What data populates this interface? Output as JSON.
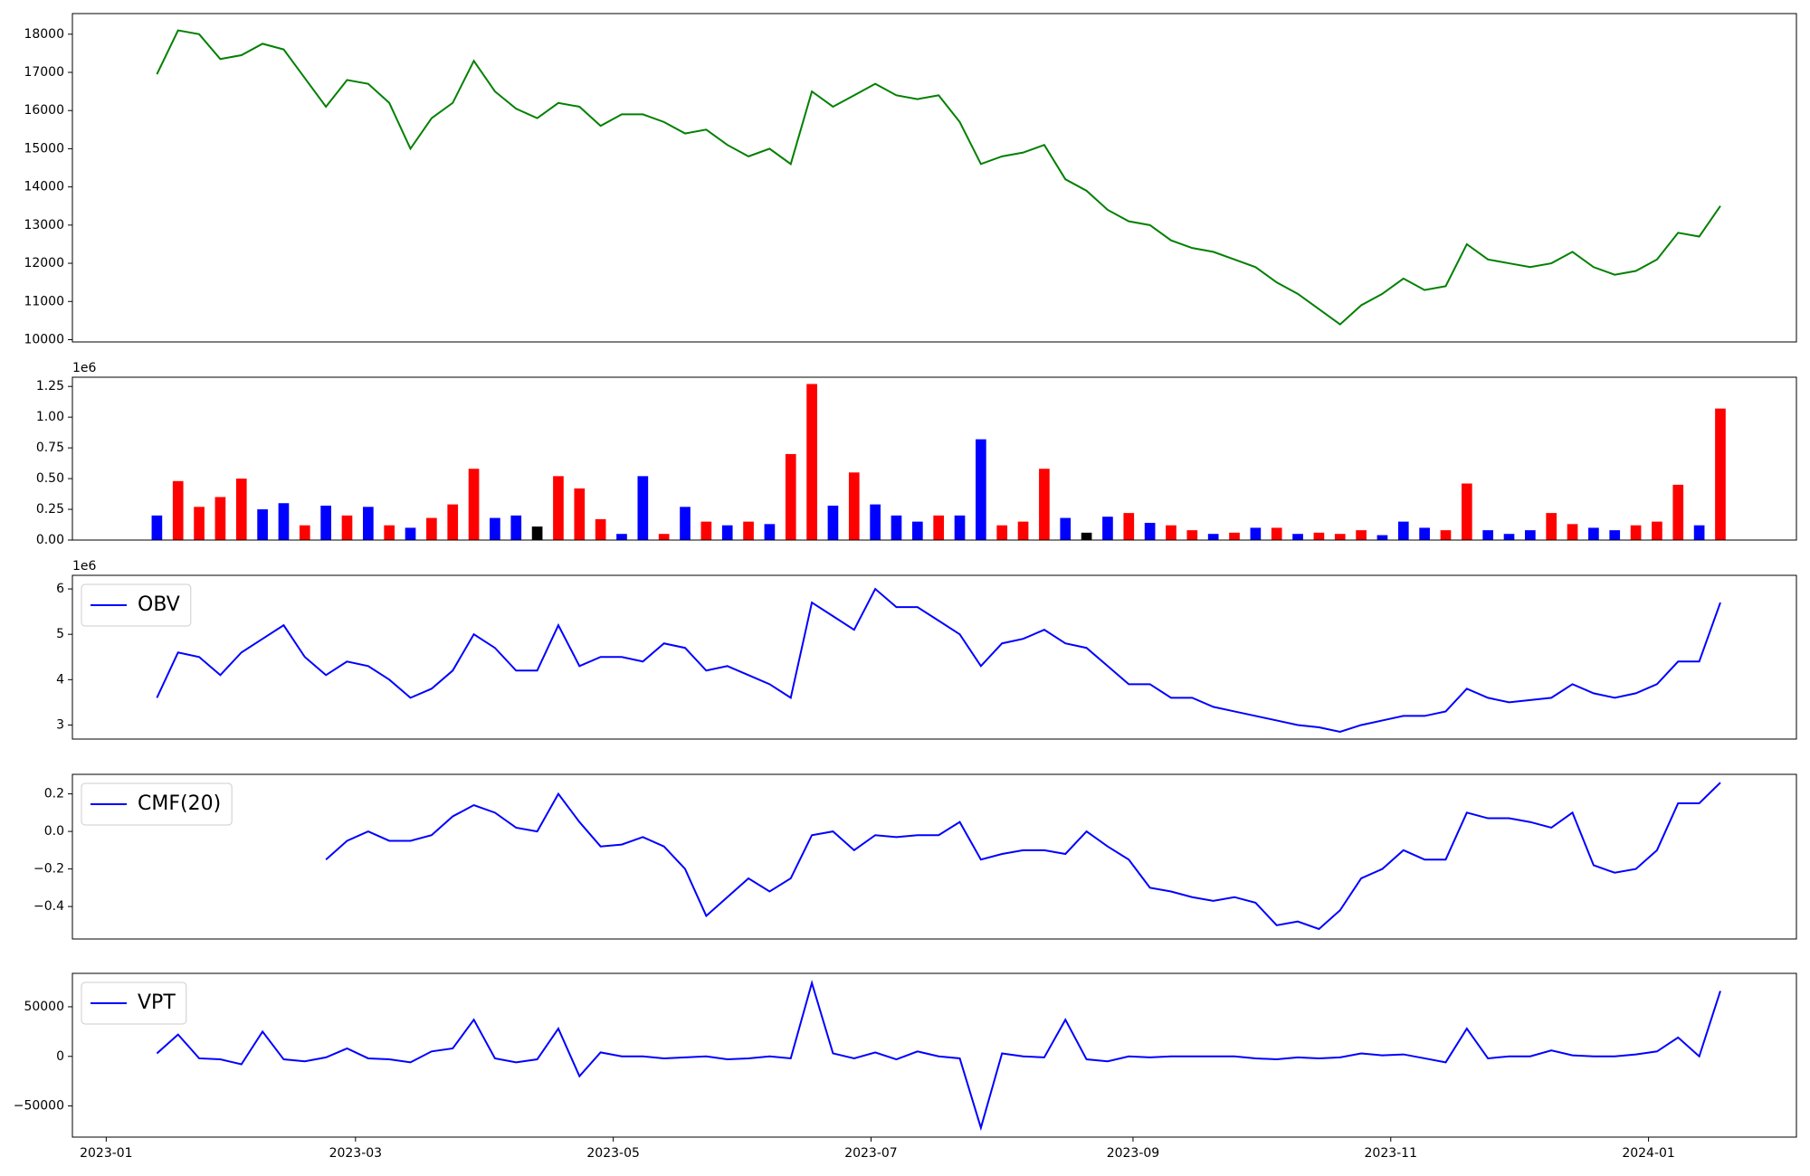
{
  "chart_data": [
    {
      "type": "line",
      "x": [
        "2023-01-13",
        "2023-01-18",
        "2023-01-23",
        "2023-01-28",
        "2023-02-02",
        "2023-02-07",
        "2023-02-12",
        "2023-02-17",
        "2023-02-22",
        "2023-02-27",
        "2023-03-04",
        "2023-03-09",
        "2023-03-14",
        "2023-03-19",
        "2023-03-24",
        "2023-03-29",
        "2023-04-03",
        "2023-04-08",
        "2023-04-13",
        "2023-04-18",
        "2023-04-23",
        "2023-04-28",
        "2023-05-03",
        "2023-05-08",
        "2023-05-13",
        "2023-05-18",
        "2023-05-23",
        "2023-05-28",
        "2023-06-02",
        "2023-06-07",
        "2023-06-12",
        "2023-06-17",
        "2023-06-22",
        "2023-06-27",
        "2023-07-02",
        "2023-07-07",
        "2023-07-12",
        "2023-07-17",
        "2023-07-22",
        "2023-07-27",
        "2023-08-01",
        "2023-08-06",
        "2023-08-11",
        "2023-08-16",
        "2023-08-21",
        "2023-08-26",
        "2023-08-31",
        "2023-09-05",
        "2023-09-10",
        "2023-09-15",
        "2023-09-20",
        "2023-09-25",
        "2023-09-30",
        "2023-10-05",
        "2023-10-10",
        "2023-10-15",
        "2023-10-20",
        "2023-10-25",
        "2023-10-30",
        "2023-11-04",
        "2023-11-09",
        "2023-11-14",
        "2023-11-19",
        "2023-11-24",
        "2023-11-29",
        "2023-12-04",
        "2023-12-09",
        "2023-12-14",
        "2023-12-19",
        "2023-12-24",
        "2023-12-29",
        "2024-01-03",
        "2024-01-08",
        "2024-01-13",
        "2024-01-18"
      ],
      "series": [
        {
          "color": "#008000",
          "values": [
            16950,
            18100,
            18000,
            17350,
            17450,
            17750,
            17600,
            16850,
            16100,
            16800,
            16700,
            16200,
            15000,
            15800,
            16200,
            17300,
            16500,
            16050,
            15800,
            16200,
            16100,
            15600,
            15900,
            15900,
            15700,
            15400,
            15500,
            15100,
            14800,
            15000,
            14600,
            16500,
            16100,
            16400,
            16700,
            16400,
            16300,
            16400,
            15700,
            14600,
            14800,
            14900,
            15100,
            14200,
            13900,
            13400,
            13100,
            13000,
            12600,
            12400,
            12300,
            12100,
            11900,
            11500,
            11200,
            10800,
            10400,
            10900,
            11200,
            11600,
            11300,
            11400,
            12500,
            12100,
            12000,
            11900,
            12000,
            12300,
            11900,
            11700,
            11800,
            12100,
            12800,
            12700,
            13500
          ]
        }
      ],
      "xlim": [
        "2022-12-24",
        "2024-02-05"
      ],
      "ylim": [
        9940,
        18540
      ],
      "yticks": [
        10000,
        11000,
        12000,
        13000,
        14000,
        15000,
        16000,
        17000,
        18000
      ]
    },
    {
      "type": "bar",
      "x": [
        "2023-01-13",
        "2023-01-18",
        "2023-01-23",
        "2023-01-28",
        "2023-02-02",
        "2023-02-07",
        "2023-02-12",
        "2023-02-17",
        "2023-02-22",
        "2023-02-27",
        "2023-03-04",
        "2023-03-09",
        "2023-03-14",
        "2023-03-19",
        "2023-03-24",
        "2023-03-29",
        "2023-04-03",
        "2023-04-08",
        "2023-04-13",
        "2023-04-18",
        "2023-04-23",
        "2023-04-28",
        "2023-05-03",
        "2023-05-08",
        "2023-05-13",
        "2023-05-18",
        "2023-05-23",
        "2023-05-28",
        "2023-06-02",
        "2023-06-07",
        "2023-06-12",
        "2023-06-17",
        "2023-06-22",
        "2023-06-27",
        "2023-07-02",
        "2023-07-07",
        "2023-07-12",
        "2023-07-17",
        "2023-07-22",
        "2023-07-27",
        "2023-08-01",
        "2023-08-06",
        "2023-08-11",
        "2023-08-16",
        "2023-08-21",
        "2023-08-26",
        "2023-08-31",
        "2023-09-05",
        "2023-09-10",
        "2023-09-15",
        "2023-09-20",
        "2023-09-25",
        "2023-09-30",
        "2023-10-05",
        "2023-10-10",
        "2023-10-15",
        "2023-10-20",
        "2023-10-25",
        "2023-10-30",
        "2023-11-04",
        "2023-11-09",
        "2023-11-14",
        "2023-11-19",
        "2023-11-24",
        "2023-11-29",
        "2023-12-04",
        "2023-12-09",
        "2023-12-14",
        "2023-12-19",
        "2023-12-24",
        "2023-12-29",
        "2024-01-03",
        "2024-01-08",
        "2024-01-13",
        "2024-01-18"
      ],
      "values": [
        0.2,
        0.48,
        0.27,
        0.35,
        0.5,
        0.25,
        0.3,
        0.12,
        0.28,
        0.2,
        0.27,
        0.12,
        0.1,
        0.18,
        0.29,
        0.58,
        0.18,
        0.2,
        0.11,
        0.52,
        0.42,
        0.17,
        0.05,
        0.52,
        0.05,
        0.27,
        0.15,
        0.12,
        0.15,
        0.13,
        0.7,
        1.27,
        0.28,
        0.55,
        0.29,
        0.2,
        0.15,
        0.2,
        0.2,
        0.82,
        0.12,
        0.15,
        0.58,
        0.18,
        0.06,
        0.19,
        0.22,
        0.14,
        0.12,
        0.08,
        0.05,
        0.06,
        0.1,
        0.1,
        0.05,
        0.06,
        0.05,
        0.08,
        0.04,
        0.15,
        0.1,
        0.08,
        0.46,
        0.08,
        0.05,
        0.08,
        0.22,
        0.13,
        0.1,
        0.08,
        0.12,
        0.15,
        0.45,
        0.12,
        1.07
      ],
      "colors": [
        "blue",
        "red",
        "red",
        "red",
        "red",
        "blue",
        "blue",
        "red",
        "blue",
        "red",
        "blue",
        "red",
        "blue",
        "red",
        "red",
        "red",
        "blue",
        "blue",
        "black",
        "red",
        "red",
        "red",
        "blue",
        "blue",
        "red",
        "blue",
        "red",
        "blue",
        "red",
        "blue",
        "red",
        "red",
        "blue",
        "red",
        "blue",
        "blue",
        "blue",
        "red",
        "blue",
        "blue",
        "red",
        "red",
        "red",
        "blue",
        "black",
        "blue",
        "red",
        "blue",
        "red",
        "red",
        "blue",
        "red",
        "blue",
        "red",
        "blue",
        "red",
        "red",
        "red",
        "blue",
        "blue",
        "blue",
        "red",
        "red",
        "blue",
        "blue",
        "blue",
        "red",
        "red",
        "blue",
        "blue",
        "red",
        "red",
        "red",
        "blue",
        "red"
      ],
      "y_offset_label": "1e6",
      "xlim": [
        "2022-12-24",
        "2024-02-05"
      ],
      "ylim": [
        0,
        1.325
      ],
      "yticks": [
        {
          "value": 0,
          "label": "0.00"
        },
        {
          "value": 0.25,
          "label": "0.25"
        },
        {
          "value": 0.5,
          "label": "0.50"
        },
        {
          "value": 0.75,
          "label": "0.75"
        },
        {
          "value": 1,
          "label": "1.00"
        },
        {
          "value": 1.25,
          "label": "1.25"
        }
      ]
    },
    {
      "type": "line",
      "x": [
        "2023-01-13",
        "2023-01-18",
        "2023-01-23",
        "2023-01-28",
        "2023-02-02",
        "2023-02-07",
        "2023-02-12",
        "2023-02-17",
        "2023-02-22",
        "2023-02-27",
        "2023-03-04",
        "2023-03-09",
        "2023-03-14",
        "2023-03-19",
        "2023-03-24",
        "2023-03-29",
        "2023-04-03",
        "2023-04-08",
        "2023-04-13",
        "2023-04-18",
        "2023-04-23",
        "2023-04-28",
        "2023-05-03",
        "2023-05-08",
        "2023-05-13",
        "2023-05-18",
        "2023-05-23",
        "2023-05-28",
        "2023-06-02",
        "2023-06-07",
        "2023-06-12",
        "2023-06-17",
        "2023-06-22",
        "2023-06-27",
        "2023-07-02",
        "2023-07-07",
        "2023-07-12",
        "2023-07-17",
        "2023-07-22",
        "2023-07-27",
        "2023-08-01",
        "2023-08-06",
        "2023-08-11",
        "2023-08-16",
        "2023-08-21",
        "2023-08-26",
        "2023-08-31",
        "2023-09-05",
        "2023-09-10",
        "2023-09-15",
        "2023-09-20",
        "2023-09-25",
        "2023-09-30",
        "2023-10-05",
        "2023-10-10",
        "2023-10-15",
        "2023-10-20",
        "2023-10-25",
        "2023-10-30",
        "2023-11-04",
        "2023-11-09",
        "2023-11-14",
        "2023-11-19",
        "2023-11-24",
        "2023-11-29",
        "2023-12-04",
        "2023-12-09",
        "2023-12-14",
        "2023-12-19",
        "2023-12-24",
        "2023-12-29",
        "2024-01-03",
        "2024-01-08",
        "2024-01-13",
        "2024-01-18"
      ],
      "series": [
        {
          "name": "OBV",
          "color": "#0000ff",
          "values": [
            3.6,
            4.6,
            4.5,
            4.1,
            4.6,
            4.9,
            5.2,
            4.5,
            4.1,
            4.4,
            4.3,
            4.0,
            3.6,
            3.8,
            4.2,
            5.0,
            4.7,
            4.2,
            4.2,
            5.2,
            4.3,
            4.5,
            4.5,
            4.4,
            4.8,
            4.7,
            4.2,
            4.3,
            4.1,
            3.9,
            3.6,
            5.7,
            5.4,
            5.1,
            6.0,
            5.6,
            5.6,
            5.3,
            5.0,
            4.3,
            4.8,
            4.9,
            5.1,
            4.8,
            4.7,
            4.3,
            3.9,
            3.9,
            3.6,
            3.6,
            3.4,
            3.3,
            3.2,
            3.1,
            3.0,
            2.95,
            2.85,
            3.0,
            3.1,
            3.2,
            3.2,
            3.3,
            3.8,
            3.6,
            3.5,
            3.55,
            3.6,
            3.9,
            3.7,
            3.6,
            3.7,
            3.9,
            4.4,
            4.4,
            5.7
          ]
        }
      ],
      "y_offset_label": "1e6",
      "legend": "upper left",
      "xlim": [
        "2022-12-24",
        "2024-02-05"
      ],
      "ylim": [
        2.69,
        6.3
      ],
      "yticks": [
        3,
        4,
        5,
        6
      ]
    },
    {
      "type": "line",
      "x": [
        "2023-01-13",
        "2023-01-18",
        "2023-01-23",
        "2023-01-28",
        "2023-02-02",
        "2023-02-07",
        "2023-02-12",
        "2023-02-17",
        "2023-02-22",
        "2023-02-27",
        "2023-03-04",
        "2023-03-09",
        "2023-03-14",
        "2023-03-19",
        "2023-03-24",
        "2023-03-29",
        "2023-04-03",
        "2023-04-08",
        "2023-04-13",
        "2023-04-18",
        "2023-04-23",
        "2023-04-28",
        "2023-05-03",
        "2023-05-08",
        "2023-05-13",
        "2023-05-18",
        "2023-05-23",
        "2023-05-28",
        "2023-06-02",
        "2023-06-07",
        "2023-06-12",
        "2023-06-17",
        "2023-06-22",
        "2023-06-27",
        "2023-07-02",
        "2023-07-07",
        "2023-07-12",
        "2023-07-17",
        "2023-07-22",
        "2023-07-27",
        "2023-08-01",
        "2023-08-06",
        "2023-08-11",
        "2023-08-16",
        "2023-08-21",
        "2023-08-26",
        "2023-08-31",
        "2023-09-05",
        "2023-09-10",
        "2023-09-15",
        "2023-09-20",
        "2023-09-25",
        "2023-09-30",
        "2023-10-05",
        "2023-10-10",
        "2023-10-15",
        "2023-10-20",
        "2023-10-25",
        "2023-10-30",
        "2023-11-04",
        "2023-11-09",
        "2023-11-14",
        "2023-11-19",
        "2023-11-24",
        "2023-11-29",
        "2023-12-04",
        "2023-12-09",
        "2023-12-14",
        "2023-12-19",
        "2023-12-24",
        "2023-12-29",
        "2024-01-03",
        "2024-01-08",
        "2024-01-13",
        "2024-01-18"
      ],
      "series": [
        {
          "name": "CMF(20)",
          "color": "#0000ff",
          "values": [
            null,
            null,
            null,
            null,
            null,
            null,
            null,
            null,
            -0.15,
            -0.05,
            0.0,
            -0.05,
            -0.05,
            -0.02,
            0.08,
            0.14,
            0.1,
            0.02,
            0.0,
            0.2,
            0.05,
            -0.08,
            -0.07,
            -0.03,
            -0.08,
            -0.2,
            -0.45,
            -0.35,
            -0.25,
            -0.32,
            -0.25,
            -0.02,
            0.0,
            -0.1,
            -0.02,
            -0.03,
            -0.02,
            -0.02,
            0.05,
            -0.15,
            -0.12,
            -0.1,
            -0.1,
            -0.12,
            0.0,
            -0.08,
            -0.15,
            -0.3,
            -0.32,
            -0.35,
            -0.37,
            -0.35,
            -0.38,
            -0.5,
            -0.48,
            -0.52,
            -0.42,
            -0.25,
            -0.2,
            -0.1,
            -0.15,
            -0.15,
            0.1,
            0.07,
            0.07,
            0.05,
            0.02,
            0.1,
            -0.18,
            -0.22,
            -0.2,
            -0.1,
            0.15,
            0.15,
            0.26
          ]
        }
      ],
      "legend": "upper left",
      "xlim": [
        "2022-12-24",
        "2024-02-05"
      ],
      "ylim": [
        -0.573,
        0.304
      ],
      "yticks": [
        {
          "value": -0.4,
          "label": "−0.4"
        },
        {
          "value": -0.2,
          "label": "−0.2"
        },
        {
          "value": 0,
          "label": "0.0"
        },
        {
          "value": 0.2,
          "label": "0.2"
        }
      ]
    },
    {
      "type": "line",
      "x": [
        "2023-01-13",
        "2023-01-18",
        "2023-01-23",
        "2023-01-28",
        "2023-02-02",
        "2023-02-07",
        "2023-02-12",
        "2023-02-17",
        "2023-02-22",
        "2023-02-27",
        "2023-03-04",
        "2023-03-09",
        "2023-03-14",
        "2023-03-19",
        "2023-03-24",
        "2023-03-29",
        "2023-04-03",
        "2023-04-08",
        "2023-04-13",
        "2023-04-18",
        "2023-04-23",
        "2023-04-28",
        "2023-05-03",
        "2023-05-08",
        "2023-05-13",
        "2023-05-18",
        "2023-05-23",
        "2023-05-28",
        "2023-06-02",
        "2023-06-07",
        "2023-06-12",
        "2023-06-17",
        "2023-06-22",
        "2023-06-27",
        "2023-07-02",
        "2023-07-07",
        "2023-07-12",
        "2023-07-17",
        "2023-07-22",
        "2023-07-27",
        "2023-08-01",
        "2023-08-06",
        "2023-08-11",
        "2023-08-16",
        "2023-08-21",
        "2023-08-26",
        "2023-08-31",
        "2023-09-05",
        "2023-09-10",
        "2023-09-15",
        "2023-09-20",
        "2023-09-25",
        "2023-09-30",
        "2023-10-05",
        "2023-10-10",
        "2023-10-15",
        "2023-10-20",
        "2023-10-25",
        "2023-10-30",
        "2023-11-04",
        "2023-11-09",
        "2023-11-14",
        "2023-11-19",
        "2023-11-24",
        "2023-11-29",
        "2023-12-04",
        "2023-12-09",
        "2023-12-14",
        "2023-12-19",
        "2023-12-24",
        "2023-12-29",
        "2024-01-03",
        "2024-01-08",
        "2024-01-13",
        "2024-01-18"
      ],
      "series": [
        {
          "name": "VPT",
          "color": "#0000ff",
          "values": [
            3000,
            22000,
            -2000,
            -3000,
            -8000,
            25000,
            -3000,
            -5000,
            -1000,
            8000,
            -2000,
            -3000,
            -6000,
            5000,
            8000,
            37000,
            -2000,
            -6000,
            -3000,
            28000,
            -20000,
            4000,
            0,
            0,
            -2000,
            -1000,
            0,
            -3000,
            -2000,
            0,
            -2000,
            74000,
            3000,
            -2000,
            4000,
            -3000,
            5000,
            0,
            -2000,
            -72000,
            3000,
            0,
            -1000,
            37000,
            -3000,
            -5000,
            0,
            -1000,
            0,
            0,
            0,
            0,
            -2000,
            -3000,
            -1000,
            -2000,
            -1000,
            3000,
            1000,
            2000,
            -2000,
            -6000,
            28000,
            -2000,
            0,
            0,
            6000,
            1000,
            0,
            0,
            2000,
            5000,
            19000,
            0,
            66000
          ]
        }
      ],
      "legend": "upper left",
      "xlim": [
        "2022-12-24",
        "2024-02-05"
      ],
      "xticks": [
        {
          "value": "2023-01-01",
          "label": "2023-01"
        },
        {
          "value": "2023-03-01",
          "label": "2023-03"
        },
        {
          "value": "2023-05-01",
          "label": "2023-05"
        },
        {
          "value": "2023-07-01",
          "label": "2023-07"
        },
        {
          "value": "2023-09-01",
          "label": "2023-09"
        },
        {
          "value": "2023-11-01",
          "label": "2023-11"
        },
        {
          "value": "2024-01-01",
          "label": "2024-01"
        }
      ],
      "ylim": [
        -81400,
        83700
      ],
      "yticks": [
        {
          "value": -50000,
          "label": "−50000"
        },
        0,
        50000
      ]
    }
  ]
}
